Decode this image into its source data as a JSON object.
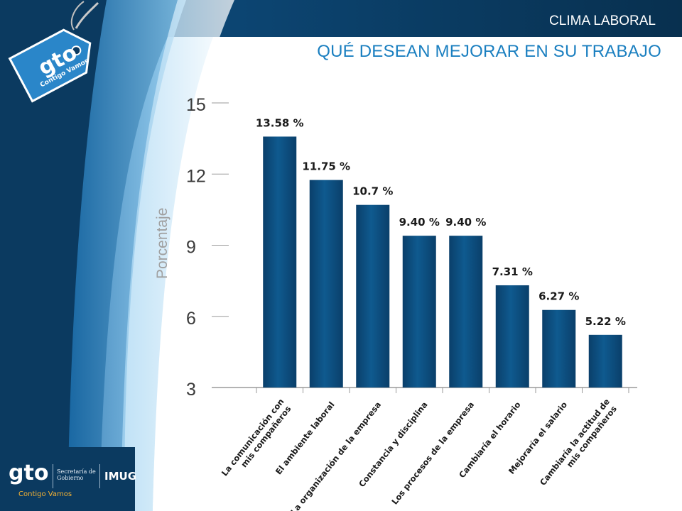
{
  "header": {
    "section": "CLIMA LABORAL",
    "title": "QUÉ DESEAN MEJORAR EN SU TRABAJO"
  },
  "brand": {
    "logo": "gto",
    "slogan": "Contigo Vamos",
    "secretaria": "Secretaría de Gobierno",
    "imug": "IMUG"
  },
  "colors": {
    "bar": "#0f5a8f",
    "bar_dark": "#0a3f6a",
    "title_blue": "#1a7fc0",
    "side_panel_dark": "#0b3a60",
    "side_panel_light": "#6bb4e4"
  },
  "chart_data": {
    "type": "bar",
    "ylabel": "Porcentaje",
    "ylim": [
      3,
      15
    ],
    "yticks": [
      15,
      12,
      9,
      6,
      3
    ],
    "grid": false,
    "categories": [
      "La comunicación con mis compañeros",
      "El ambiente laboral",
      "La organización de la empresa",
      "Constancia y disciplina",
      "Los procesos de la empresa",
      "Cambiaría el horario",
      "Mejoraría el salario",
      "Cambiaría la actitud de mis compañeros"
    ],
    "category_lines": [
      [
        "La comunicación con",
        "mis compañeros"
      ],
      [
        "El ambiente laboral"
      ],
      [
        "La organización de la empresa"
      ],
      [
        "Constancia y disciplina"
      ],
      [
        "Los procesos de la empresa"
      ],
      [
        "Cambiaría el horario"
      ],
      [
        "Mejoraría el salario"
      ],
      [
        "Cambiaría la actitud de",
        "mis compañeros"
      ]
    ],
    "values": [
      13.58,
      11.75,
      10.7,
      9.4,
      9.4,
      7.31,
      6.27,
      5.22
    ],
    "value_labels": [
      "13.58 %",
      "11.75 %",
      "10.7 %",
      "9.40 %",
      "9.40 %",
      "7.31 %",
      "6.27 %",
      "5.22 %"
    ]
  }
}
